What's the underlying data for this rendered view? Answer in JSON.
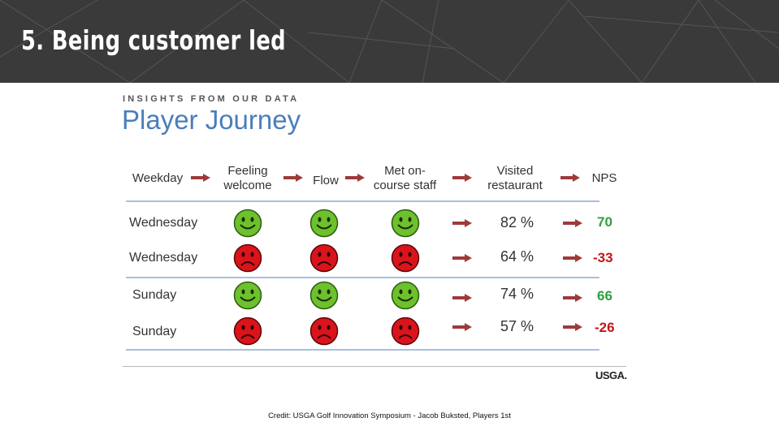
{
  "slide": {
    "title": "5. Being customer led"
  },
  "content": {
    "kicker": "INSIGHTS FROM OUR DATA",
    "title": "Player Journey",
    "columns": [
      "Weekday",
      "Feeling welcome",
      "Flow",
      "Met on-course staff",
      "Visited restaurant",
      "NPS"
    ],
    "rows": [
      {
        "day": "Wednesday",
        "feeling": "happy",
        "flow": "happy",
        "staff": "happy",
        "visited": "82 %",
        "nps": "70",
        "nps_color": "#2e9e3f"
      },
      {
        "day": "Wednesday",
        "feeling": "sad",
        "flow": "sad",
        "staff": "sad",
        "visited": "64 %",
        "nps": "-33",
        "nps_color": "#c0161b"
      },
      {
        "day": "Sunday",
        "feeling": "happy",
        "flow": "happy",
        "staff": "happy",
        "visited": "74 %",
        "nps": "66",
        "nps_color": "#2e9e3f"
      },
      {
        "day": "Sunday",
        "feeling": "sad",
        "flow": "sad",
        "staff": "sad",
        "visited": "57 %",
        "nps": "-26",
        "nps_color": "#c0161b"
      }
    ],
    "logo": "USGA.",
    "credit": "Credit: USGA Golf Innovation Symposium - Jacob Buksted, Players 1st"
  },
  "colors": {
    "header_bg": "#3a3a3a",
    "title_blue": "#4a7ebb",
    "arrow": "#9e3a3a",
    "happy": "#6cc12c",
    "sad": "#d9141b"
  }
}
